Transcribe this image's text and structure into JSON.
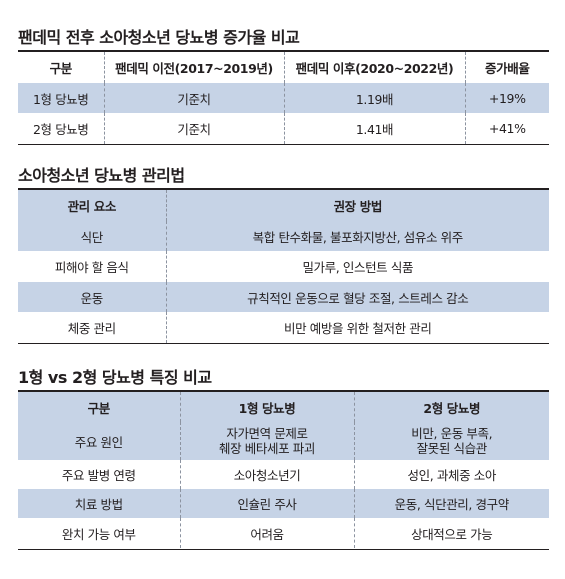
{
  "section1": {
    "title": "팬데믹 전후 소아청소년 당뇨병 증가율 비교",
    "headers": [
      "구분",
      "팬데믹 이전(2017~2019년)",
      "팬데믹 이후(2020~2022년)",
      "증가배율"
    ],
    "rows": [
      [
        "1형 당뇨병",
        "기준치",
        "1.19배",
        "+19%"
      ],
      [
        "2형 당뇨병",
        "기준치",
        "1.41배",
        "+41%"
      ]
    ]
  },
  "section2": {
    "title": "소아청소년 당뇨병 관리법",
    "headers": [
      "관리 요소",
      "권장 방법"
    ],
    "rows": [
      [
        "식단",
        "복합 탄수화물, 불포화지방산, 섬유소 위주"
      ],
      [
        "피해야 할 음식",
        "밀가루, 인스턴트 식품"
      ],
      [
        "운동",
        "규칙적인 운동으로 혈당 조절, 스트레스 감소"
      ],
      [
        "체중 관리",
        "비만 예방을 위한 철저한 관리"
      ]
    ]
  },
  "section3": {
    "title": "1형 vs 2형 당뇨병 특징 비교",
    "headers": [
      "구분",
      "1형 당뇨병",
      "2형 당뇨병"
    ],
    "rows": [
      [
        "주요 원인",
        "자가면역 문제로\n췌장 베타세포 파괴",
        "비만, 운동 부족,\n잘못된 식습관"
      ],
      [
        "주요 발병 연령",
        "소아청소년기",
        "성인, 과체중 소아"
      ],
      [
        "치료 방법",
        "인슐린 주사",
        "운동, 식단관리, 경구약"
      ],
      [
        "완치 가능 여부",
        "어려움",
        "상대적으로 가능"
      ]
    ]
  }
}
